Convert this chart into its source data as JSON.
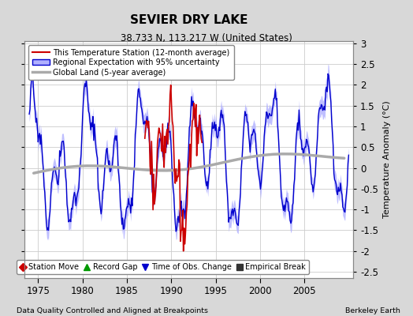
{
  "title": "SEVIER DRY LAKE",
  "subtitle": "38.733 N, 113.217 W (United States)",
  "ylabel": "Temperature Anomaly (°C)",
  "footer_left": "Data Quality Controlled and Aligned at Breakpoints",
  "footer_right": "Berkeley Earth",
  "xlim": [
    1973.5,
    2010.5
  ],
  "ylim": [
    -2.65,
    3.05
  ],
  "yticks": [
    -2.5,
    -2,
    -1.5,
    -1,
    -0.5,
    0,
    0.5,
    1,
    1.5,
    2,
    2.5,
    3
  ],
  "ytick_labels": [
    "-2.5",
    "-2",
    "-1.5",
    "-1",
    "-0.5",
    "0",
    "0.5",
    "1",
    "1.5",
    "2",
    "2.5",
    "3"
  ],
  "xticks": [
    1975,
    1980,
    1985,
    1990,
    1995,
    2000,
    2005
  ],
  "fig_bg_color": "#d8d8d8",
  "plot_bg_color": "#ffffff",
  "regional_color": "#0000cc",
  "regional_uncertainty_color": "#b0b0ff",
  "station_color": "#cc0000",
  "global_color": "#aaaaaa",
  "grid_color": "#cccccc",
  "legend_items": [
    {
      "label": "This Temperature Station (12-month average)",
      "color": "#cc0000",
      "lw": 1.5
    },
    {
      "label": "Regional Expectation with 95% uncertainty",
      "color": "#0000cc",
      "lw": 1.5
    },
    {
      "label": "Global Land (5-year average)",
      "color": "#aaaaaa",
      "lw": 2.5
    }
  ],
  "marker_items": [
    {
      "label": "Station Move",
      "marker": "D",
      "color": "#cc0000"
    },
    {
      "label": "Record Gap",
      "marker": "^",
      "color": "#009900"
    },
    {
      "label": "Time of Obs. Change",
      "marker": "v",
      "color": "#0000cc"
    },
    {
      "label": "Empirical Break",
      "marker": "s",
      "color": "#333333"
    }
  ]
}
